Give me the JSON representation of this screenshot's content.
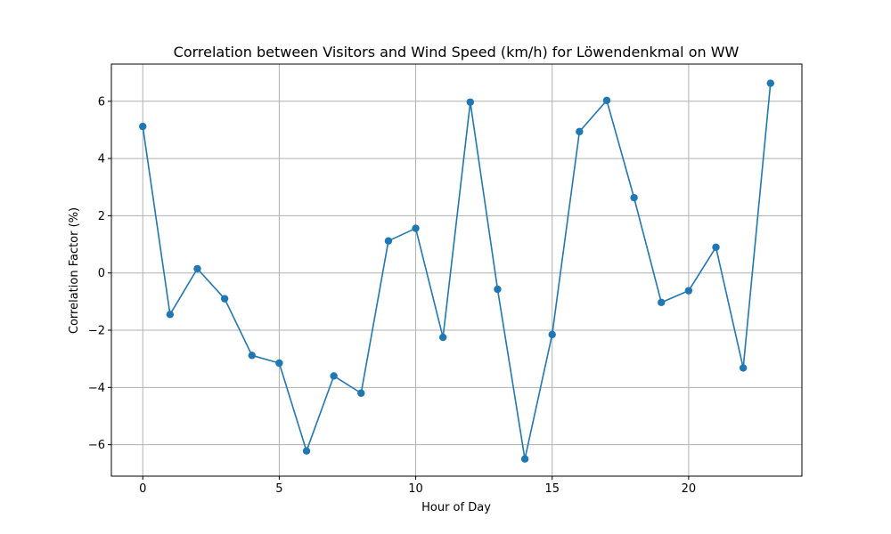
{
  "chart_data": {
    "type": "line",
    "title": "Correlation between Visitors and Wind Speed (km/h) for Löwendenkmal on WW",
    "xlabel": "Hour of Day",
    "ylabel": "Correlation Factor (%)",
    "xlim": [
      -1.15,
      24.15
    ],
    "ylim": [
      -7.1,
      7.3
    ],
    "xticks": [
      0,
      5,
      10,
      15,
      20
    ],
    "yticks": [
      -6,
      -4,
      -2,
      0,
      2,
      4,
      6
    ],
    "xtick_labels": [
      "0",
      "5",
      "10",
      "15",
      "20"
    ],
    "ytick_labels": [
      "−6",
      "−4",
      "−2",
      "0",
      "2",
      "4",
      "6"
    ],
    "grid": true,
    "color": "#1f77b4",
    "marker": "circle",
    "x": [
      0,
      1,
      2,
      3,
      4,
      5,
      6,
      7,
      8,
      9,
      10,
      11,
      12,
      13,
      14,
      15,
      16,
      17,
      18,
      19,
      20,
      21,
      22,
      23
    ],
    "y": [
      5.12,
      -1.45,
      0.15,
      -0.9,
      -2.88,
      -3.15,
      -6.22,
      -3.6,
      -4.2,
      1.12,
      1.56,
      -2.25,
      5.97,
      -0.57,
      -6.5,
      -2.15,
      4.94,
      6.03,
      2.63,
      -1.03,
      -0.62,
      0.9,
      -3.32,
      6.63
    ]
  }
}
